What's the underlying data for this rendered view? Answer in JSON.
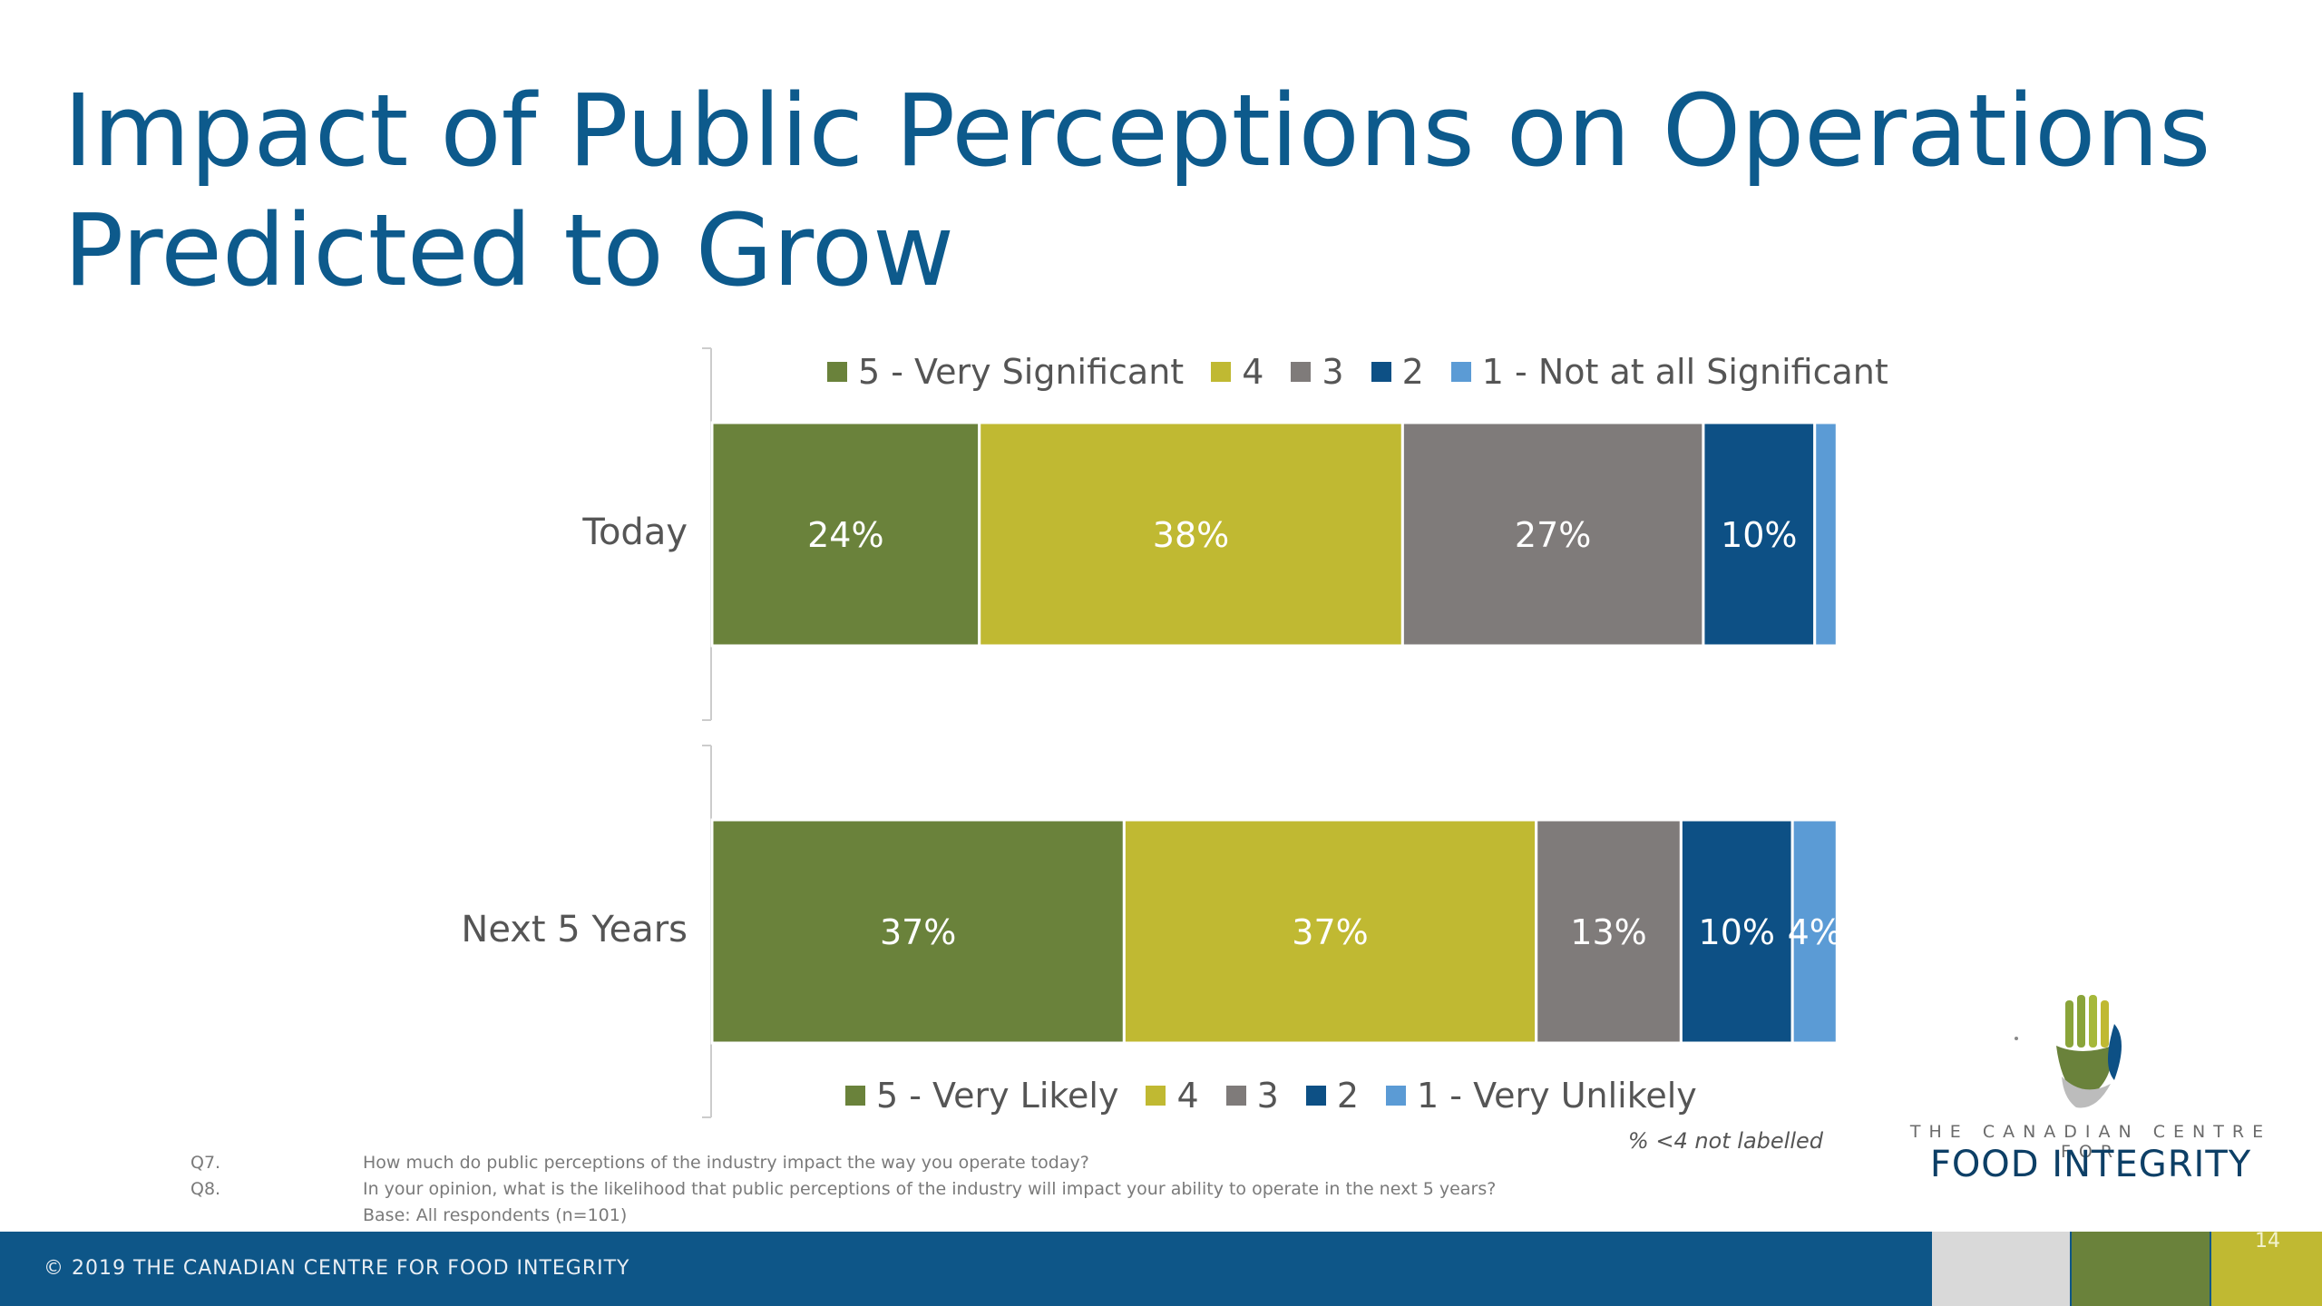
{
  "title": {
    "line1": "Impact of Public Perceptions on Operations",
    "line2": "Predicted to Grow"
  },
  "colors": {
    "title": "#0d5a8c",
    "footer": "#0e5688",
    "label_text": "#ffffff",
    "axis": "#cccccc"
  },
  "chart_data": {
    "type": "bar",
    "orientation": "horizontal",
    "stacked": true,
    "categories": [
      "Today",
      "Next 5 Years"
    ],
    "xlim": [
      0,
      100
    ],
    "grid": false,
    "label_format": "{v}%",
    "label_threshold": 4,
    "bars": [
      {
        "category": "Today",
        "segments": [
          {
            "key": "5",
            "value": 24,
            "color": "#6a823b"
          },
          {
            "key": "4",
            "value": 38,
            "color": "#c0b932"
          },
          {
            "key": "3",
            "value": 27,
            "color": "#7f7b7a"
          },
          {
            "key": "2",
            "value": 10,
            "color": "#0d5085"
          },
          {
            "key": "1",
            "value": 2,
            "color": "#5b9bd5"
          }
        ]
      },
      {
        "category": "Next 5 Years",
        "segments": [
          {
            "key": "5",
            "value": 37,
            "color": "#6a823b"
          },
          {
            "key": "4",
            "value": 37,
            "color": "#c0b932"
          },
          {
            "key": "3",
            "value": 13,
            "color": "#7f7b7a"
          },
          {
            "key": "2",
            "value": 10,
            "color": "#0d5085"
          },
          {
            "key": "1",
            "value": 4,
            "color": "#5b9bd5"
          }
        ]
      }
    ],
    "legend_today": [
      "5 - Very Significant",
      "4",
      "3",
      "2",
      "1 - Not at all Significant"
    ],
    "legend_next": [
      "5 - Very Likely",
      "4",
      "3",
      "2",
      "1 - Very Unlikely"
    ],
    "note": "% <4 not labelled"
  },
  "footnotes": [
    {
      "code": "Q7.",
      "text": "How much do public perceptions of the industry impact the way you operate today?"
    },
    {
      "code": "Q8.",
      "text": "In your opinion, what is the likelihood that public perceptions of the industry will impact your ability to operate in the next 5 years?"
    },
    {
      "code": "",
      "text": "Base: All respondents (n=101)"
    }
  ],
  "logo": {
    "line1": "THE CANADIAN CENTRE FOR",
    "line2": "FOOD INTEGRITY",
    "icon": "hand-leaf-icon"
  },
  "footer": {
    "text": "© 2019 THE CANADIAN CENTRE FOR FOOD INTEGRITY",
    "page_number": "14",
    "blocks": [
      "#d9d9d9",
      "#6a823b",
      "#c0b932"
    ]
  }
}
